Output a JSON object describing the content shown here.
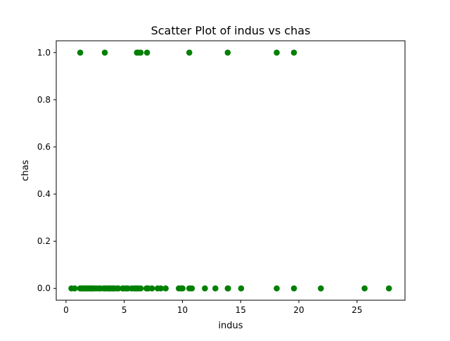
{
  "chart_data": {
    "type": "scatter",
    "title": "Scatter Plot of indus vs chas",
    "xlabel": "indus",
    "ylabel": "chas",
    "xlim": [
      -0.84,
      29.12
    ],
    "ylim": [
      -0.05,
      1.05
    ],
    "xticks": [
      0,
      5,
      10,
      15,
      20,
      25
    ],
    "yticks": [
      0.0,
      0.2,
      0.4,
      0.6,
      0.8,
      1.0
    ],
    "xtick_labels": [
      "0",
      "5",
      "10",
      "15",
      "20",
      "25"
    ],
    "ytick_labels": [
      "0.0",
      "0.2",
      "0.4",
      "0.6",
      "0.8",
      "1.0"
    ],
    "grid": false,
    "marker_color": "#008000",
    "series": [
      {
        "x": [
          1.22,
          3.33,
          6.09,
          6.2,
          6.41,
          6.96,
          10.59,
          13.89,
          18.1,
          19.58,
          0.46,
          0.74,
          1.21,
          1.25,
          1.32,
          1.38,
          1.47,
          1.52,
          1.69,
          1.76,
          1.89,
          2.01,
          2.03,
          2.18,
          2.24,
          2.31,
          2.46,
          2.68,
          2.89,
          2.95,
          3.24,
          3.37,
          3.41,
          3.44,
          3.64,
          3.75,
          3.78,
          3.97,
          4.05,
          4.15,
          4.39,
          4.49,
          4.86,
          4.93,
          5.13,
          5.19,
          5.32,
          5.64,
          5.86,
          5.96,
          6.07,
          6.2,
          6.41,
          6.91,
          6.96,
          7.07,
          7.38,
          7.87,
          8.14,
          8.56,
          9.69,
          9.9,
          10.01,
          10.59,
          10.81,
          11.93,
          12.83,
          13.89,
          13.92,
          15.04,
          18.1,
          19.58,
          21.89,
          25.65,
          27.74
        ],
        "y": [
          1,
          1,
          1,
          1,
          1,
          1,
          1,
          1,
          1,
          1,
          0,
          0,
          0,
          0,
          0,
          0,
          0,
          0,
          0,
          0,
          0,
          0,
          0,
          0,
          0,
          0,
          0,
          0,
          0,
          0,
          0,
          0,
          0,
          0,
          0,
          0,
          0,
          0,
          0,
          0,
          0,
          0,
          0,
          0,
          0,
          0,
          0,
          0,
          0,
          0,
          0,
          0,
          0,
          0,
          0,
          0,
          0,
          0,
          0,
          0,
          0,
          0,
          0,
          0,
          0,
          0,
          0,
          0,
          0,
          0,
          0,
          0,
          0,
          0,
          0
        ]
      }
    ]
  }
}
